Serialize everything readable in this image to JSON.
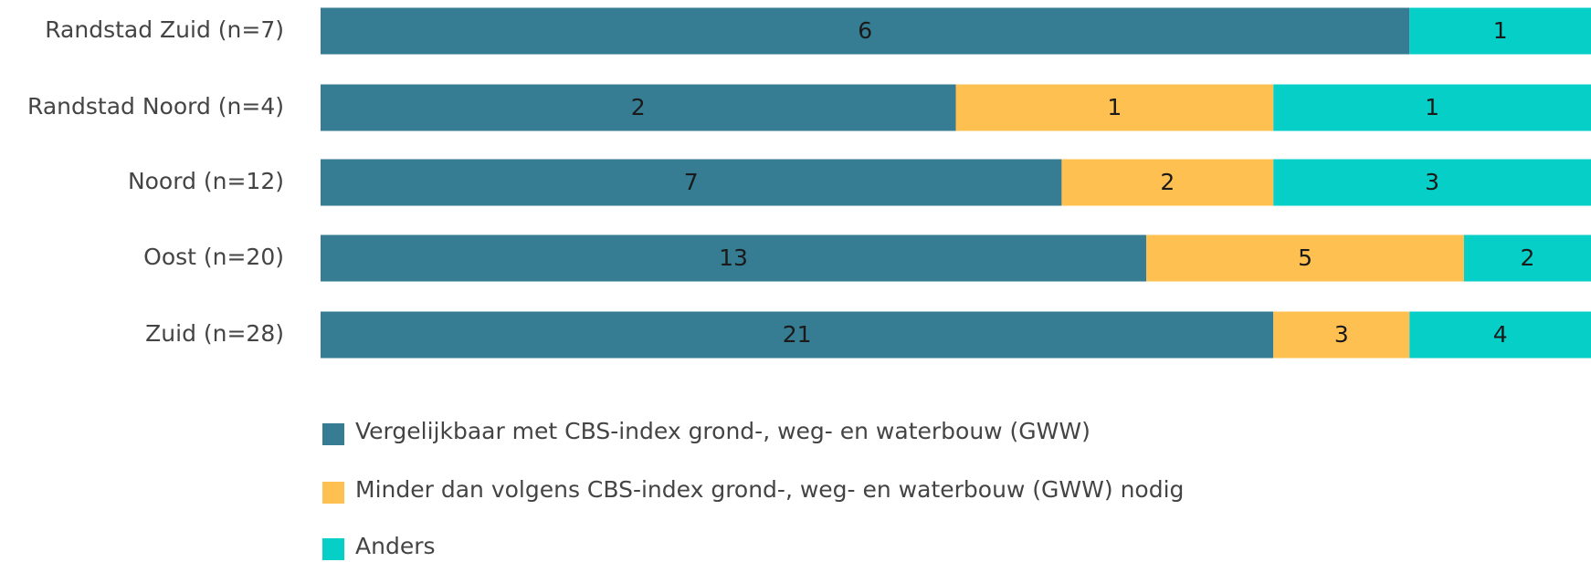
{
  "chart_data": {
    "type": "stacked-bar-100",
    "orientation": "horizontal",
    "categories": [
      "Randstad Zuid (n=7)",
      "Randstad Noord (n=4)",
      "Noord (n=12)",
      "Oost (n=20)",
      "Zuid (n=28)"
    ],
    "series": [
      {
        "name": "Vergelijkbaar met CBS-index grond-, weg- en waterbouw (GWW)",
        "color": "#367d93",
        "values": [
          6,
          2,
          7,
          13,
          21
        ]
      },
      {
        "name": "Minder dan volgens CBS-index grond-, weg- en waterbouw (GWW) nodig",
        "color": "#ffc052",
        "values": [
          0,
          1,
          2,
          5,
          3
        ]
      },
      {
        "name": "Anders",
        "color": "#06cfc8",
        "values": [
          1,
          1,
          3,
          2,
          4
        ]
      }
    ]
  }
}
